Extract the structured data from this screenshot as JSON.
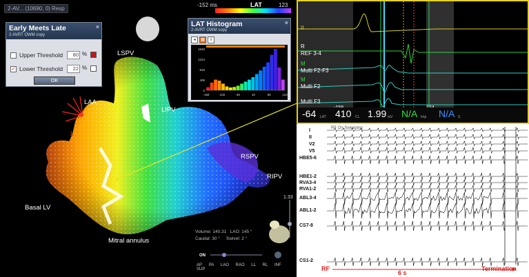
{
  "map": {
    "selector_label": "2-AV... (10690, 0) Resp",
    "lat_bar": {
      "min": "-152 ms",
      "title": "LAT",
      "max": "123 ms"
    },
    "anatomy_labels": [
      "LSPV",
      "LAA",
      "L",
      "LIPV",
      "RSPV",
      "RIPV",
      "Basal LV",
      "Mitral annulus"
    ],
    "volume_info": {
      "volume_label": "Volume:",
      "volume_value": "140.31",
      "lao_label": "LAO:",
      "lao_value": "145 °",
      "caudal_label": "Caudal:",
      "caudal_value": "30 °",
      "swivel_label": "Swivel:",
      "swivel_value": "2 °"
    },
    "zoom_label": "1.33",
    "on_label": "ON",
    "view_buttons": [
      "AP",
      "PA",
      "LAO",
      "RAO",
      "LL",
      "RL",
      "INF",
      "SUP"
    ]
  },
  "early_meets_late": {
    "title": "Early Meets Late",
    "subtitle": "2-AVRT OWM copy",
    "upper": {
      "label": "Upper Threshold",
      "checked": false,
      "value": "80",
      "unit": "%",
      "color": "#c01818"
    },
    "lower": {
      "label": "Lower Threshold",
      "checked": true,
      "check_mark": "✓",
      "value": "22",
      "unit": "%",
      "color": "#ffffff"
    },
    "ok_label": "OK",
    "close_icon": "×"
  },
  "lat_histogram": {
    "title": "LAT Histogram",
    "subtitle": "2-AVRT OWM copy",
    "close_icon": "×",
    "y_ticks": [
      "1632",
      "1224",
      "816",
      "408",
      "0"
    ],
    "x_ticks": [
      "-158",
      "-102",
      "-46",
      "10",
      "66",
      "124"
    ]
  },
  "chart_data": {
    "type": "bar",
    "x_ticks": [
      -158,
      -102,
      -46,
      10,
      66,
      124
    ],
    "values": [
      120,
      300,
      420,
      380,
      260,
      150,
      110,
      130,
      180,
      260,
      340,
      420,
      520,
      640,
      780,
      930,
      1100,
      1400,
      1632,
      900,
      420
    ],
    "ylim": [
      0,
      1632
    ],
    "bar_colors": [
      "#ff2020",
      "#ff4010",
      "#ff6a00",
      "#ff9200",
      "#ffb800",
      "#ffd800",
      "#f0f000",
      "#b8f000",
      "#70f030",
      "#30f070",
      "#00f0b0",
      "#00e0e0",
      "#00c0f0",
      "#00a0ff",
      "#0080ff",
      "#1060ff",
      "#2040ff",
      "#3030f0",
      "#4020e0",
      "#8020e0",
      "#c040ff"
    ]
  },
  "egm": {
    "channels": [
      "II",
      "R",
      "REF 3-4",
      "M",
      "Multi F2-F3",
      "M",
      "Multi F2",
      "Multi F3"
    ],
    "axis_left": "-158",
    "axis_right": "124",
    "readouts": [
      {
        "value": "-64",
        "unit": "LAT"
      },
      {
        "value": "410",
        "unit": "CL"
      },
      {
        "value": "1.99",
        "unit": "mV"
      },
      {
        "value": "N/A",
        "unit": "Imp"
      },
      {
        "value": "N/A",
        "unit": "S"
      }
    ]
  },
  "tracing": {
    "top_text": "RF On   Sweeping",
    "labels": [
      "I",
      "II",
      "V2",
      "V5",
      "HBE5-6",
      "HBE1-2",
      "RVA3-4",
      "RVA1-2",
      "ABL3-4",
      "ABL1-2",
      "CS7-8",
      "CS1-2"
    ],
    "rf_label": "RF",
    "duration_label": "6 s",
    "termination_label": "Termination"
  }
}
